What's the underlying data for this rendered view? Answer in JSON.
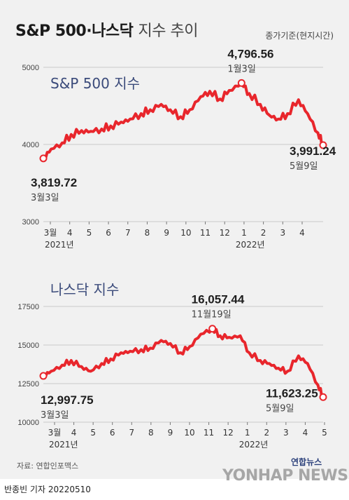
{
  "title": {
    "main": "S&P 500·나스닥",
    "sub": "지수 추이"
  },
  "basis": "종가기준(현지시간)",
  "source": "자료: 연합인포맥스",
  "byline": "반종빈 기자  20220510",
  "logo": "연합뉴스",
  "watermark": "YONHAP NEWS",
  "colors": {
    "line": "#e8262c",
    "grid": "#c9c9c9",
    "label": "#3a4a7a",
    "background": "#f1f1f1"
  },
  "chart_data": [
    {
      "type": "line",
      "title": "S&P 500 지수",
      "ylim": [
        3000,
        5000
      ],
      "yticks": [
        3000,
        4000,
        5000
      ],
      "xticks": [
        "3월",
        "4",
        "5",
        "6",
        "7",
        "8",
        "9",
        "10",
        "11",
        "12",
        "1",
        "2",
        "3",
        "4"
      ],
      "year_labels": [
        "2021년",
        "2022년"
      ],
      "series": [
        {
          "name": "S&P 500",
          "x": [
            "2021-03-03",
            "2021-03-15",
            "2021-04-01",
            "2021-04-15",
            "2021-05-01",
            "2021-05-15",
            "2021-06-01",
            "2021-06-15",
            "2021-07-01",
            "2021-07-15",
            "2021-08-01",
            "2021-08-15",
            "2021-09-01",
            "2021-09-15",
            "2021-10-01",
            "2021-10-15",
            "2021-11-01",
            "2021-11-15",
            "2021-12-01",
            "2021-12-15",
            "2022-01-03",
            "2022-01-15",
            "2022-02-01",
            "2022-02-15",
            "2022-03-01",
            "2022-03-15",
            "2022-04-01",
            "2022-04-15",
            "2022-05-01",
            "2022-05-09"
          ],
          "values": [
            3819.72,
            3940,
            4020,
            4130,
            4180,
            4170,
            4200,
            4240,
            4290,
            4330,
            4400,
            4450,
            4520,
            4450,
            4360,
            4450,
            4620,
            4690,
            4590,
            4700,
            4796.56,
            4660,
            4520,
            4380,
            4330,
            4400,
            4580,
            4400,
            4150,
            3991.24
          ]
        }
      ],
      "annotations": [
        {
          "value": "3,819.72",
          "date": "3월3일"
        },
        {
          "value": "4,796.56",
          "date": "1월3일"
        },
        {
          "value": "3,991.24",
          "date": "5월9일"
        }
      ]
    },
    {
      "type": "line",
      "title": "나스닥 지수",
      "ylim": [
        10000,
        17500
      ],
      "yticks": [
        10000,
        12500,
        15000,
        17500
      ],
      "xticks": [
        "3월",
        "4",
        "5",
        "6",
        "7",
        "8",
        "9",
        "10",
        "11",
        "12",
        "1",
        "2",
        "3",
        "4",
        "5"
      ],
      "year_labels": [
        "2021년",
        "2022년"
      ],
      "series": [
        {
          "name": "나스닥",
          "x": [
            "2021-03-03",
            "2021-03-15",
            "2021-04-01",
            "2021-04-15",
            "2021-05-01",
            "2021-05-15",
            "2021-06-01",
            "2021-06-15",
            "2021-07-01",
            "2021-07-15",
            "2021-08-01",
            "2021-08-15",
            "2021-09-01",
            "2021-09-15",
            "2021-10-01",
            "2021-10-15",
            "2021-11-01",
            "2021-11-19",
            "2021-12-01",
            "2021-12-15",
            "2022-01-01",
            "2022-01-15",
            "2022-02-01",
            "2022-02-15",
            "2022-03-01",
            "2022-03-15",
            "2022-04-01",
            "2022-04-15",
            "2022-05-01",
            "2022-05-09"
          ],
          "values": [
            12997.75,
            13300,
            13700,
            14000,
            13600,
            13300,
            13800,
            14100,
            14500,
            14600,
            14700,
            14800,
            15300,
            15100,
            14500,
            14900,
            15700,
            16057.44,
            15600,
            15500,
            15600,
            14500,
            14000,
            13800,
            13500,
            13300,
            14300,
            13800,
            12400,
            11623.25
          ]
        }
      ],
      "annotations": [
        {
          "value": "12,997.75",
          "date": "3월3일"
        },
        {
          "value": "16,057.44",
          "date": "11월19일"
        },
        {
          "value": "11,623.25",
          "date": "5월9일"
        }
      ]
    }
  ]
}
